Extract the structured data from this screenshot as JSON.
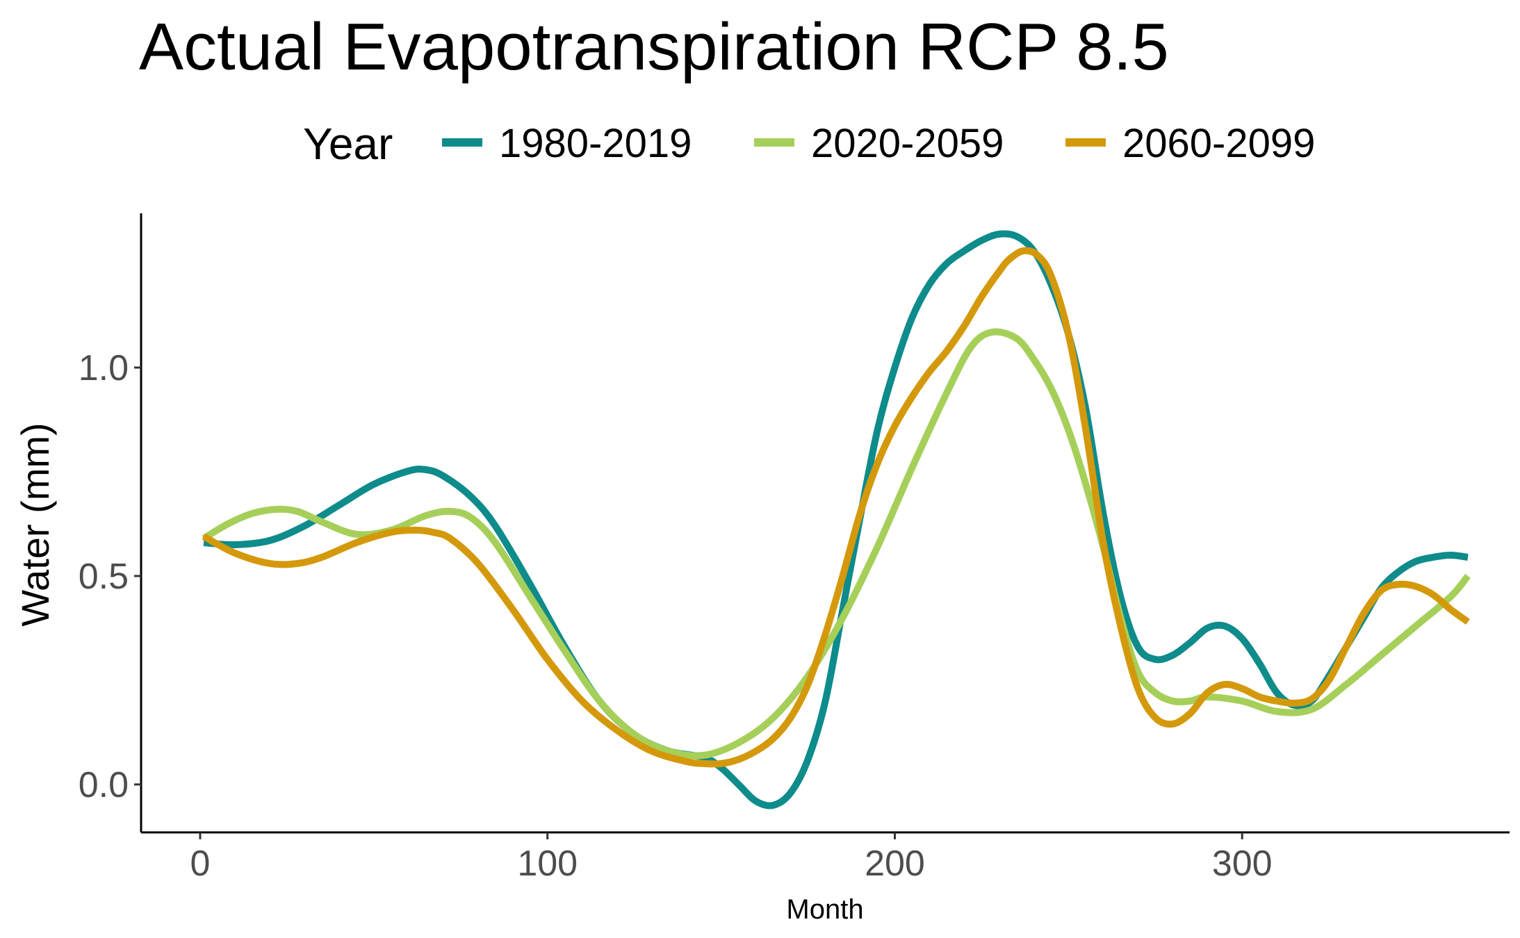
{
  "chart_data": {
    "type": "line",
    "title": "Actual Evapotranspiration RCP 8.5",
    "xlabel": "Month",
    "ylabel": "Water (mm)",
    "xlim": [
      -17,
      377
    ],
    "ylim": [
      -0.115,
      1.37
    ],
    "x_ticks": [
      0,
      100,
      200,
      300
    ],
    "x_tick_labels": [
      "0",
      "100",
      "200",
      "300"
    ],
    "y_ticks": [
      0.0,
      0.5,
      1.0
    ],
    "y_tick_labels": [
      "0.0",
      "0.5",
      "1.0"
    ],
    "grid": false,
    "legend": {
      "title": "Year",
      "placement": "top"
    },
    "series": [
      {
        "name": "1980-2019",
        "color": "#0e8b8b",
        "x": [
          1,
          10,
          20,
          30,
          40,
          50,
          60,
          65,
          70,
          78,
          85,
          95,
          105,
          115,
          125,
          135,
          145,
          150,
          155,
          160,
          165,
          170,
          175,
          180,
          185,
          190,
          195,
          200,
          205,
          210,
          215,
          220,
          225,
          230,
          235,
          240,
          245,
          250,
          255,
          260,
          265,
          270,
          275,
          280,
          285,
          290,
          295,
          300,
          305,
          310,
          315,
          320,
          325,
          330,
          335,
          340,
          345,
          350,
          355,
          360,
          365
        ],
        "y": [
          0.58,
          0.575,
          0.585,
          0.62,
          0.67,
          0.72,
          0.752,
          0.755,
          0.74,
          0.69,
          0.62,
          0.48,
          0.33,
          0.2,
          0.12,
          0.08,
          0.065,
          0.04,
          0.0,
          -0.04,
          -0.05,
          -0.02,
          0.06,
          0.2,
          0.42,
          0.64,
          0.85,
          1.0,
          1.12,
          1.2,
          1.25,
          1.28,
          1.305,
          1.32,
          1.315,
          1.28,
          1.2,
          1.08,
          0.9,
          0.65,
          0.45,
          0.33,
          0.3,
          0.31,
          0.34,
          0.375,
          0.38,
          0.35,
          0.29,
          0.22,
          0.19,
          0.2,
          0.26,
          0.33,
          0.4,
          0.47,
          0.51,
          0.535,
          0.545,
          0.55,
          0.545
        ]
      },
      {
        "name": "2020-2059",
        "color": "#a6cf5a",
        "x": [
          1,
          8,
          15,
          22,
          28,
          35,
          45,
          55,
          65,
          72,
          78,
          85,
          95,
          105,
          115,
          125,
          135,
          145,
          155,
          165,
          175,
          185,
          195,
          205,
          215,
          222,
          228,
          235,
          240,
          245,
          250,
          255,
          260,
          265,
          270,
          275,
          280,
          285,
          290,
          300,
          310,
          320,
          330,
          340,
          350,
          360,
          365
        ],
        "y": [
          0.59,
          0.625,
          0.65,
          0.66,
          0.655,
          0.63,
          0.6,
          0.61,
          0.645,
          0.655,
          0.64,
          0.58,
          0.45,
          0.32,
          0.2,
          0.12,
          0.08,
          0.07,
          0.1,
          0.16,
          0.26,
          0.4,
          0.57,
          0.76,
          0.94,
          1.05,
          1.085,
          1.07,
          1.02,
          0.95,
          0.85,
          0.72,
          0.57,
          0.4,
          0.27,
          0.22,
          0.2,
          0.2,
          0.21,
          0.2,
          0.175,
          0.18,
          0.24,
          0.31,
          0.38,
          0.45,
          0.5
        ]
      },
      {
        "name": "2060-2099",
        "color": "#d4990b",
        "x": [
          1,
          10,
          20,
          28,
          35,
          45,
          55,
          62,
          67,
          72,
          80,
          90,
          100,
          110,
          120,
          130,
          140,
          145,
          150,
          155,
          160,
          165,
          170,
          175,
          180,
          185,
          190,
          195,
          200,
          205,
          210,
          215,
          220,
          225,
          230,
          233,
          237,
          241,
          245,
          250,
          255,
          260,
          265,
          270,
          275,
          280,
          285,
          290,
          295,
          300,
          305,
          310,
          315,
          320,
          325,
          330,
          335,
          340,
          345,
          350,
          355,
          360,
          365
        ],
        "y": [
          0.595,
          0.555,
          0.53,
          0.53,
          0.545,
          0.58,
          0.605,
          0.61,
          0.605,
          0.59,
          0.53,
          0.42,
          0.3,
          0.2,
          0.13,
          0.08,
          0.055,
          0.05,
          0.05,
          0.06,
          0.08,
          0.11,
          0.16,
          0.24,
          0.36,
          0.5,
          0.65,
          0.77,
          0.86,
          0.93,
          0.99,
          1.04,
          1.1,
          1.17,
          1.23,
          1.26,
          1.28,
          1.27,
          1.22,
          1.08,
          0.85,
          0.58,
          0.38,
          0.23,
          0.16,
          0.145,
          0.17,
          0.22,
          0.24,
          0.23,
          0.21,
          0.2,
          0.195,
          0.205,
          0.25,
          0.33,
          0.41,
          0.465,
          0.48,
          0.475,
          0.455,
          0.42,
          0.39
        ]
      }
    ]
  }
}
